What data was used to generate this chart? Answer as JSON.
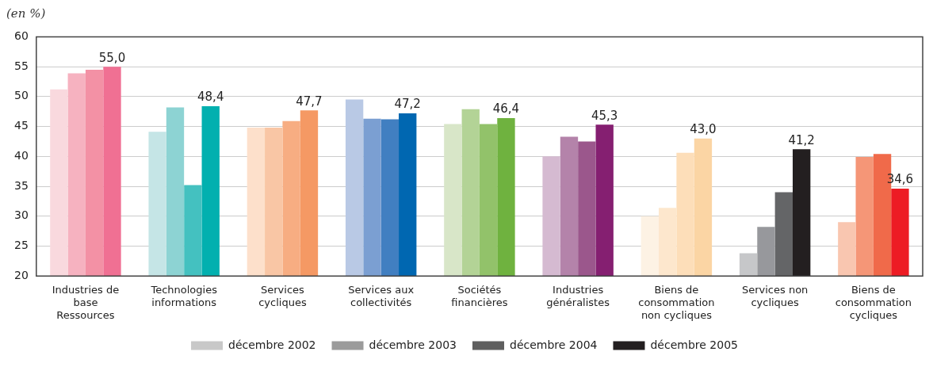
{
  "chart_data": {
    "type": "bar",
    "annotations": [
      "(en %)"
    ],
    "categories": [
      "Industries de base Ressources",
      "Technologies informations",
      "Services cycliques",
      "Services aux collectivités",
      "Sociétés financières",
      "Industries généralistes",
      "Biens de consommation non cycliques",
      "Services non cycliques",
      "Biens de consommation cycliques"
    ],
    "series": [
      {
        "name": "décembre 2002",
        "color": "#c8c8c8",
        "values": [
          51.2,
          44.1,
          44.8,
          49.5,
          45.4,
          40.0,
          30.0,
          23.8,
          29.0
        ],
        "colors": [
          "#f9d9de",
          "#c5e5e6",
          "#fde0cb",
          "#b9c9e5",
          "#d8e6c8",
          "#d5bad1",
          "#fdf2e4",
          "#c6c7c9",
          "#f9c6b0"
        ]
      },
      {
        "name": "décembre 2003",
        "color": "#9b9b9b",
        "values": [
          53.9,
          48.2,
          44.8,
          46.3,
          47.9,
          43.3,
          31.4,
          28.2,
          39.9
        ],
        "colors": [
          "#f6b2c0",
          "#8dd3d3",
          "#f9c6a5",
          "#7b9fd2",
          "#b3d396",
          "#b483aa",
          "#fde7cd",
          "#97989c",
          "#f59677"
        ]
      },
      {
        "name": "décembre 2004",
        "color": "#5f5f5f",
        "values": [
          54.5,
          35.2,
          45.9,
          46.2,
          45.4,
          42.5,
          40.6,
          34.0,
          40.4
        ],
        "colors": [
          "#f391a5",
          "#44c1c0",
          "#f7ad82",
          "#417fc1",
          "#92c26a",
          "#9b578c",
          "#fddeb9",
          "#646567",
          "#f06a4a"
        ]
      },
      {
        "name": "décembre 2005",
        "color": "#231f20",
        "values": [
          55.0,
          48.4,
          47.7,
          47.2,
          46.4,
          45.3,
          43.0,
          41.2,
          34.6
        ],
        "colors": [
          "#f07093",
          "#02b0af",
          "#f59964",
          "#0067b1",
          "#6fb23f",
          "#851f71",
          "#fbd5a4",
          "#231f20",
          "#ed1c24"
        ],
        "value_labels": [
          "55,0",
          "48,4",
          "47,7",
          "47,2",
          "46,4",
          "45,3",
          "43,0",
          "41,2",
          "34,6"
        ]
      }
    ],
    "ylim": [
      20,
      60
    ],
    "yticks": [
      20,
      25,
      30,
      35,
      40,
      45,
      50,
      55,
      60
    ],
    "grid": "y",
    "legend": "bottom"
  }
}
